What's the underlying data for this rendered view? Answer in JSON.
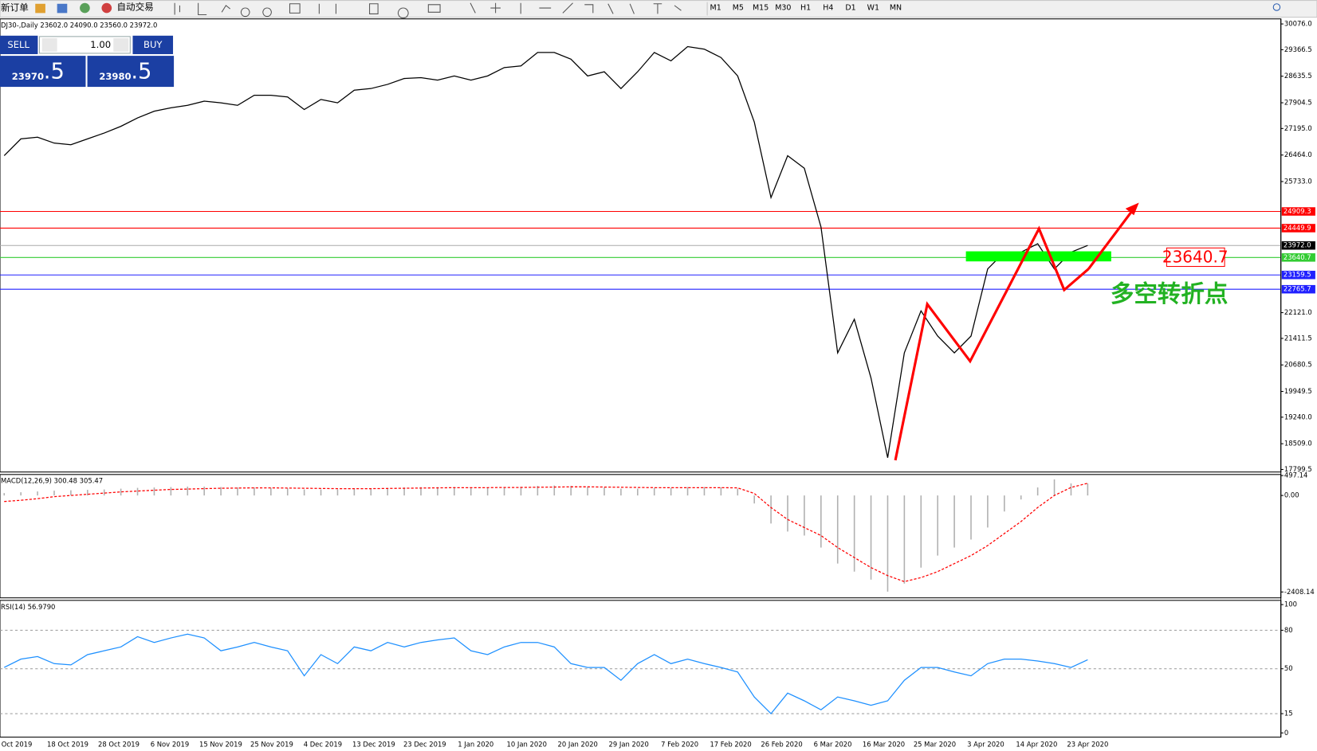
{
  "toolbar": {
    "items": [
      "新订单",
      "自动交易"
    ],
    "timeframes": [
      "M1",
      "M5",
      "M15",
      "M30",
      "H1",
      "H4",
      "D1",
      "W1",
      "MN"
    ]
  },
  "trade_panel": {
    "sell": "SELL",
    "buy": "BUY",
    "lots": "1.00",
    "bid": "23970",
    "bid_pip": ".5",
    "ask": "23980",
    "ask_pip": ".5"
  },
  "date_axis": [
    "Oct 2019",
    "18 Oct 2019",
    "28 Oct 2019",
    "6 Nov 2019",
    "15 Nov 2019",
    "25 Nov 2019",
    "4 Dec 2019",
    "13 Dec 2019",
    "23 Dec 2019",
    "1 Jan 2020",
    "10 Jan 2020",
    "20 Jan 2020",
    "29 Jan 2020",
    "7 Feb 2020",
    "17 Feb 2020",
    "26 Feb 2020",
    "6 Mar 2020",
    "16 Mar 2020",
    "25 Mar 2020",
    "3 Apr 2020",
    "14 Apr 2020",
    "23 Apr 2020"
  ],
  "annotations": [
    {
      "text": "23640.7"
    },
    {
      "text": "多空转折点"
    }
  ],
  "chart_data": [
    {
      "type": "line",
      "title": "DJ30-,Daily 23602.0 24090.0 23560.0 23972.0",
      "ylim": [
        17730,
        30215
      ],
      "yticks": [
        {
          "value": 30076,
          "label": "30076.0"
        },
        29366.5,
        28635.5,
        27904.5,
        {
          "value": 27195,
          "label": "27195.0"
        },
        {
          "value": 26464,
          "label": "26464.0"
        },
        {
          "value": 25733,
          "label": "25733.0"
        },
        {
          "value": 22121,
          "label": "22121.0"
        },
        21411.5,
        20680.5,
        19949.5,
        {
          "value": 19240,
          "label": "19240.0"
        },
        {
          "value": 18509,
          "label": "18509.0"
        },
        17799.5
      ],
      "levels": [
        {
          "value": 24909.3,
          "color": "#ff0000"
        },
        24449.9,
        {
          "value": 23972,
          "label": "23972.0",
          "color": "#000000"
        },
        {
          "value": 23640.7,
          "color": "#33cc33"
        },
        {
          "value": 23159.5,
          "color": "#2020ff"
        },
        {
          "value": 22765.7,
          "color": "#2020ff"
        }
      ],
      "series": [
        {
          "name": "DJ30-",
          "color": "#000000",
          "values": [
            26446,
            26909,
            26955,
            26793,
            26747,
            26909,
            27070,
            27255,
            27487,
            27672,
            27764,
            27833,
            27949,
            27903,
            27833,
            28111,
            28111,
            28065,
            27718,
            27995,
            27903,
            28250,
            28296,
            28411,
            28573,
            28596,
            28527,
            28643,
            28527,
            28643,
            28874,
            28920,
            29290,
            29290,
            29105,
            28643,
            28758,
            28296,
            28758,
            29290,
            29059,
            29452,
            29382,
            29151,
            28643,
            27371,
            25290,
            26446,
            26099,
            24481,
            21013,
            21938,
            20319,
            18123,
            21013,
            22169,
            21475,
            21013,
            21475,
            23325,
            23787,
            23787,
            24019,
            23325,
            23787,
            23972
          ]
        }
      ]
    },
    {
      "type": "macd",
      "title": "MACD(12,26,9) 300.48 305.47",
      "ylim": [
        -2555,
        523
      ],
      "yticks": [
        497.14,
        {
          "value": 0,
          "label": "0.00"
        },
        -2408.14
      ],
      "series": [
        {
          "name": "MACD",
          "color": "#b0b0b0",
          "values": [
            60,
            80,
            100,
            120,
            130,
            140,
            150,
            170,
            190,
            200,
            210,
            220,
            220,
            210,
            200,
            200,
            190,
            180,
            150,
            150,
            150,
            170,
            180,
            190,
            200,
            210,
            210,
            210,
            200,
            200,
            210,
            220,
            240,
            250,
            240,
            210,
            200,
            170,
            170,
            190,
            190,
            210,
            210,
            200,
            170,
            -200,
            -700,
            -900,
            -1000,
            -1300,
            -1700,
            -1900,
            -2100,
            -2400,
            -2200,
            -1800,
            -1500,
            -1300,
            -1100,
            -800,
            -400,
            -100,
            200,
            400,
            300,
            300
          ]
        },
        {
          "name": "Signal",
          "color": "#ff0000",
          "values": [
            -150,
            -120,
            -80,
            -30,
            0,
            30,
            60,
            90,
            110,
            130,
            150,
            160,
            170,
            180,
            185,
            190,
            190,
            185,
            180,
            175,
            170,
            170,
            170,
            175,
            180,
            185,
            190,
            195,
            195,
            195,
            200,
            200,
            205,
            210,
            215,
            215,
            210,
            205,
            200,
            195,
            195,
            195,
            195,
            195,
            190,
            50,
            -300,
            -600,
            -800,
            -1000,
            -1300,
            -1550,
            -1800,
            -2000,
            -2150,
            -2050,
            -1900,
            -1700,
            -1500,
            -1250,
            -950,
            -650,
            -300,
            0,
            200,
            305
          ]
        }
      ]
    },
    {
      "type": "line",
      "title": "RSI(14) 56.9790",
      "ylim": [
        -3.3,
        103.3
      ],
      "yticks": [
        100,
        80,
        50,
        15,
        0
      ],
      "series": [
        {
          "name": "RSI",
          "color": "#1e90ff",
          "values": [
            51,
            57.5,
            59.5,
            54,
            53,
            61,
            64,
            67,
            75,
            70.5,
            74,
            77,
            74,
            64,
            67,
            70.5,
            67,
            64,
            44.5,
            61,
            54,
            67,
            64,
            70.5,
            67,
            70.5,
            72.5,
            74,
            64,
            61,
            67,
            70.5,
            70.5,
            67,
            54,
            51,
            51,
            41,
            54,
            61,
            54,
            57.5,
            54,
            51,
            47.5,
            28,
            15,
            31,
            25,
            18,
            28,
            25,
            21.5,
            25,
            41,
            51,
            51,
            47.5,
            44.5,
            54,
            57.5,
            57.5,
            56,
            54,
            51,
            57
          ]
        }
      ]
    }
  ]
}
